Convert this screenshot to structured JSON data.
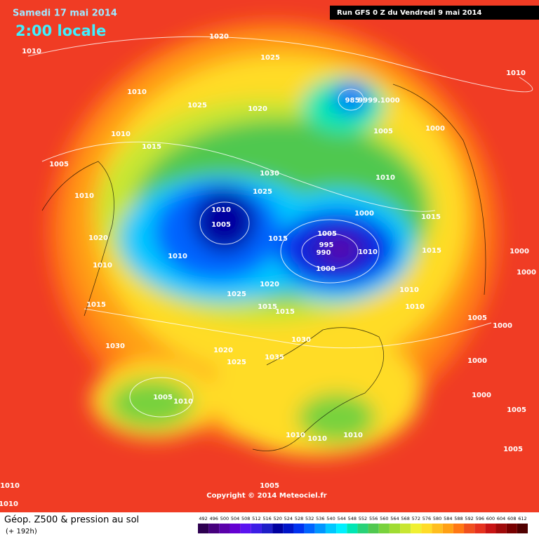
{
  "header": {
    "date": "Samedi 17 mai 2014",
    "time": "2:00 locale",
    "run": "Run GFS 0 Z du Vendredi 9 mai 2014"
  },
  "footer": {
    "title": "Géop. Z500 & pression au sol",
    "lead": "(+ 192h)",
    "copyright": "Copyright © 2014 Meteociel.fr"
  },
  "scale": {
    "values": [
      492,
      496,
      500,
      504,
      508,
      512,
      516,
      520,
      524,
      528,
      532,
      536,
      540,
      544,
      548,
      552,
      556,
      560,
      564,
      568,
      572,
      576,
      580,
      584,
      588,
      592,
      596,
      600,
      604,
      608,
      612
    ],
    "colors": [
      "#2d0050",
      "#46007d",
      "#5a00aa",
      "#6400d2",
      "#5a14f0",
      "#3c1ee6",
      "#1e1ec8",
      "#0000a0",
      "#0014c8",
      "#0032f0",
      "#0064ff",
      "#0096ff",
      "#00c8ff",
      "#00f0ff",
      "#00e6b4",
      "#28d278",
      "#50c850",
      "#78d23c",
      "#a0dc32",
      "#c8e632",
      "#f0f032",
      "#ffdc28",
      "#ffbe1e",
      "#ffa014",
      "#ff7814",
      "#f0501e",
      "#e6321e",
      "#c81414",
      "#a00a0a",
      "#780000",
      "#500000"
    ]
  },
  "isobar_labels": [
    "1010",
    "1020",
    "1025",
    "1010",
    "1010",
    "1025",
    "1020",
    "985",
    "9999.1000",
    "1005",
    "1000",
    "1010",
    "1015",
    "1005",
    "1030",
    "1025",
    "1010",
    "1010",
    "1000",
    "1010",
    "1005",
    "1015",
    "1015",
    "1005",
    "995",
    "990",
    "1010",
    "1020",
    "1010",
    "1000",
    "1015",
    "1010",
    "1000",
    "1000",
    "1020",
    "1010",
    "1025",
    "1015",
    "1015",
    "1010",
    "1015",
    "1005",
    "1000",
    "1030",
    "1030",
    "1020",
    "1035",
    "1025",
    "1000",
    "1005",
    "1010",
    "1000",
    "1005",
    "1010",
    "1010",
    "1010",
    "1005",
    "1005",
    "1010",
    "1010"
  ]
}
